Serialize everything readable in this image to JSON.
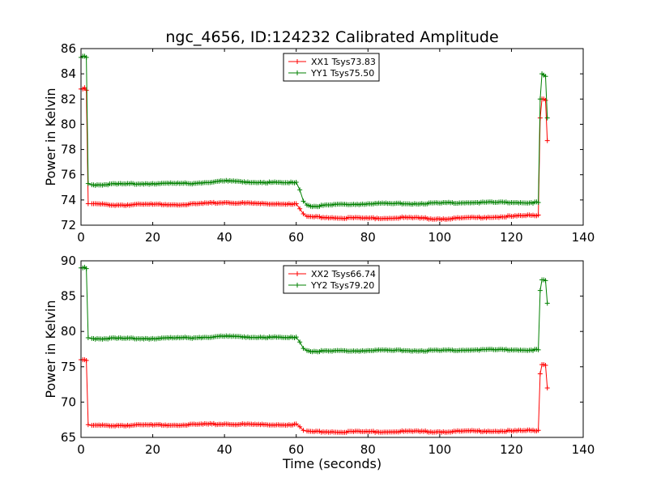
{
  "figure_title": "ngc_4656, ID:124232 Calibrated Amplitude",
  "colors": {
    "xx": "#ff0000",
    "yy": "#008000",
    "axes": "#000000"
  },
  "chart_data": [
    {
      "type": "line",
      "title": "ngc_4656, ID:124232 Calibrated Amplitude",
      "xlabel": "",
      "ylabel": "Power in Kelvin",
      "xlim": [
        0,
        140
      ],
      "ylim": [
        72,
        86
      ],
      "xticks": [
        0,
        20,
        40,
        60,
        80,
        100,
        120,
        140
      ],
      "yticks": [
        72,
        74,
        76,
        78,
        80,
        82,
        84,
        86
      ],
      "legend_position": "top-center",
      "grid": false,
      "marker": "plus",
      "series": [
        {
          "name": "XX1 Tsys73.83",
          "color": "#ff0000",
          "x": [
            0,
            0.5,
            1,
            1.5,
            2,
            3,
            10,
            20,
            30,
            40,
            50,
            58,
            60,
            61,
            62,
            63,
            65,
            70,
            80,
            90,
            100,
            110,
            120,
            127.5,
            128,
            128.5,
            129,
            129.5,
            130
          ],
          "y": [
            82.8,
            82.8,
            82.9,
            82.7,
            73.7,
            73.7,
            73.6,
            73.65,
            73.65,
            73.8,
            73.7,
            73.7,
            73.7,
            73.3,
            72.9,
            72.7,
            72.65,
            72.6,
            72.55,
            72.6,
            72.5,
            72.6,
            72.7,
            72.8,
            80.5,
            82.0,
            82.0,
            81.9,
            78.7
          ]
        },
        {
          "name": "YY1 Tsys75.50",
          "color": "#008000",
          "x": [
            0,
            0.5,
            1,
            1.5,
            2,
            3,
            10,
            20,
            30,
            40,
            50,
            58,
            60,
            61,
            62,
            63,
            65,
            70,
            80,
            90,
            100,
            110,
            120,
            127.5,
            128,
            128.5,
            129,
            129.5,
            130
          ],
          "y": [
            85.3,
            85.4,
            85.4,
            85.3,
            75.3,
            75.2,
            75.25,
            75.3,
            75.3,
            75.5,
            75.4,
            75.35,
            75.4,
            74.8,
            73.9,
            73.6,
            73.5,
            73.6,
            73.7,
            73.7,
            73.75,
            73.8,
            73.8,
            73.8,
            82.0,
            84.0,
            83.9,
            83.8,
            80.5
          ]
        }
      ]
    },
    {
      "type": "line",
      "title": "",
      "xlabel": "Time (seconds)",
      "ylabel": "Power in Kelvin",
      "xlim": [
        0,
        140
      ],
      "ylim": [
        65,
        90
      ],
      "xticks": [
        0,
        20,
        40,
        60,
        80,
        100,
        120,
        140
      ],
      "yticks": [
        65,
        70,
        75,
        80,
        85,
        90
      ],
      "legend_position": "top-center",
      "grid": false,
      "marker": "plus",
      "series": [
        {
          "name": "XX2 Tsys66.74",
          "color": "#ff0000",
          "x": [
            0,
            0.5,
            1,
            1.5,
            2,
            3,
            10,
            20,
            30,
            40,
            50,
            58,
            60,
            61,
            62,
            63,
            65,
            70,
            80,
            90,
            100,
            110,
            120,
            127.5,
            128,
            128.5,
            129,
            129.5,
            130
          ],
          "y": [
            76.0,
            76.0,
            76.0,
            75.9,
            66.8,
            66.7,
            66.7,
            66.75,
            66.8,
            66.9,
            66.8,
            66.8,
            66.9,
            66.5,
            66.0,
            65.9,
            65.8,
            65.8,
            65.8,
            65.85,
            65.8,
            65.9,
            65.9,
            66.0,
            74.0,
            75.3,
            75.3,
            75.2,
            72.0
          ]
        },
        {
          "name": "YY2 Tsys79.20",
          "color": "#008000",
          "x": [
            0,
            0.5,
            1,
            1.5,
            2,
            3,
            10,
            20,
            30,
            40,
            50,
            58,
            60,
            61,
            62,
            63,
            65,
            70,
            80,
            90,
            100,
            110,
            120,
            127.5,
            128,
            128.5,
            129,
            129.5,
            130
          ],
          "y": [
            89.0,
            89.0,
            89.1,
            88.9,
            79.1,
            79.0,
            79.0,
            79.0,
            79.1,
            79.3,
            79.2,
            79.1,
            79.2,
            78.5,
            77.6,
            77.3,
            77.2,
            77.2,
            77.3,
            77.3,
            77.3,
            77.4,
            77.4,
            77.4,
            85.8,
            87.3,
            87.3,
            87.2,
            84.0
          ]
        }
      ]
    }
  ]
}
